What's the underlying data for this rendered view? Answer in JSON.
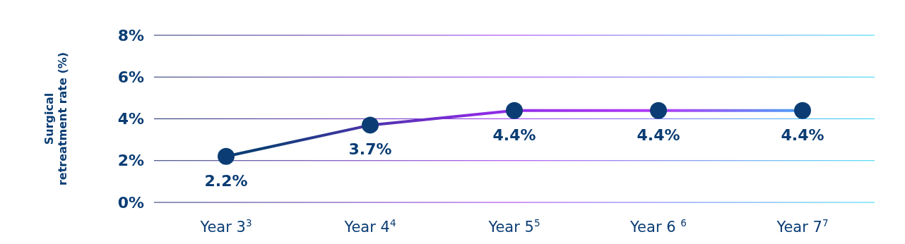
{
  "chart_data": {
    "type": "line",
    "ylabel": "Surgical retreatment rate (%)",
    "categories": [
      "Year 3$^{3}$",
      "Year 4$^{4}$",
      "Year 5$^{5}$",
      "Year 6 $^{6}$",
      "Year 7$^{7}$"
    ],
    "series": [
      {
        "color": "#0b3d74",
        "values": [
          2.2,
          3.7,
          4.4,
          4.4,
          4.4
        ],
        "value_labels": [
          "2.2%",
          "3.7%",
          "4.4%",
          "4.4%",
          "4.4%"
        ]
      }
    ],
    "ylim": [
      0,
      8
    ],
    "yticks": [
      {
        "value": 0,
        "label": "0%"
      },
      {
        "value": 2,
        "label": "2%"
      },
      {
        "value": 4,
        "label": "4%"
      },
      {
        "value": 6,
        "label": "6%"
      },
      {
        "value": 8,
        "label": "8%"
      }
    ],
    "grid": "y",
    "marker": "circle",
    "line_style": "solid"
  }
}
